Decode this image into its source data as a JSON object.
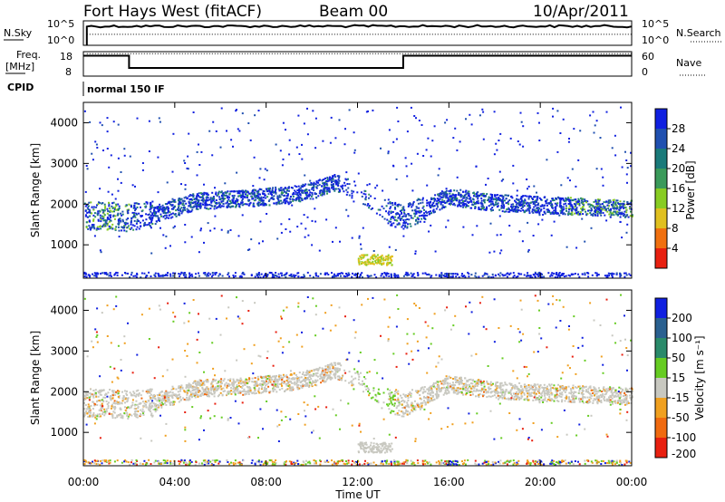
{
  "header": {
    "radar": "Fort Hays West (fitACF)",
    "beam": "Beam 00",
    "date": "10/Apr/2011",
    "cpid_text": "normal 150 IF"
  },
  "chart_data": [
    {
      "type": "line",
      "panel": "noise",
      "left_label": "N.Sky",
      "right_label": "N.Search",
      "left_ticks": [
        "10^5",
        "10^0"
      ],
      "right_ticks": [
        "10^5",
        "10^0"
      ],
      "series": [
        {
          "name": "N.Sky",
          "style": "solid",
          "level_fraction": 0.78
        },
        {
          "name": "N.Search",
          "style": "dotted",
          "level_fraction": 0.45
        }
      ]
    },
    {
      "type": "line",
      "panel": "frequency",
      "left_label": "Freq.",
      "left_units": "[MHz]",
      "right_label": "Nave",
      "left_ticks": [
        "18",
        "8"
      ],
      "right_ticks": [
        "60",
        "0"
      ],
      "series": [
        {
          "name": "Freq",
          "style": "solid",
          "x_hours": [
            0,
            2,
            2,
            14,
            14,
            24
          ],
          "y_mhz": [
            16,
            16,
            10,
            10,
            16,
            16
          ]
        },
        {
          "name": "Nave",
          "style": "dotted",
          "y": 55
        }
      ]
    },
    {
      "type": "heatmap",
      "panel": "power",
      "xlabel": "",
      "ylabel": "Slant Range [km]",
      "ylim": [
        180,
        4500
      ],
      "yticks": [
        "4000",
        "3000",
        "2000",
        "1000"
      ],
      "colorbar_label": "Power [dB]",
      "colorbar_ticks": [
        "28",
        "24",
        "20",
        "16",
        "12",
        "8",
        "4"
      ],
      "colorbar_range": [
        0,
        30
      ],
      "colors": [
        "#1020e0",
        "#2050b0",
        "#1a7a7a",
        "#3a9a5a",
        "#88cc22",
        "#e0c020",
        "#f07010",
        "#e82010"
      ]
    },
    {
      "type": "heatmap",
      "panel": "velocity",
      "xlabel": "Time UT",
      "ylabel": "Slant Range [km]",
      "ylim": [
        180,
        4500
      ],
      "yticks": [
        "4000",
        "3000",
        "2000",
        "1000"
      ],
      "xticks": [
        "00:00",
        "04:00",
        "08:00",
        "12:00",
        "16:00",
        "20:00",
        "00:00"
      ],
      "xlim_hours": [
        0,
        24
      ],
      "colorbar_label": "Velocity [m s⁻¹]",
      "colorbar_ticks": [
        "200",
        "100",
        "50",
        "15",
        "-15",
        "-50",
        "-100",
        "-200"
      ],
      "colors": [
        "#1020e0",
        "#2a6090",
        "#2a8a6a",
        "#66cc22",
        "#c8c8c0",
        "#f0a020",
        "#f06a10",
        "#e82010"
      ]
    }
  ]
}
